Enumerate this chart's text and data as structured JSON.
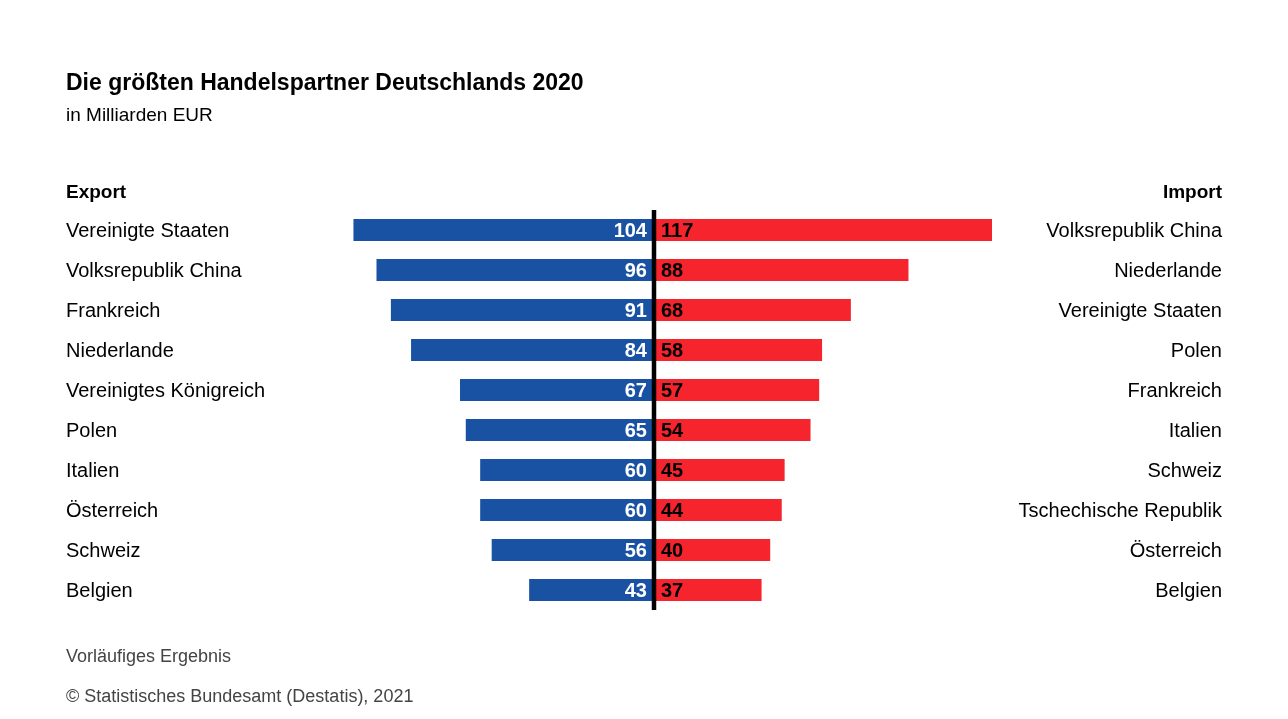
{
  "chart_data": [
    {
      "type": "bar",
      "orientation": "horizontal",
      "title": "Die größten Handelspartner Deutschlands 2020",
      "subtitle": "in Milliarden EUR",
      "ylabel": "Export",
      "categories": [
        "Vereinigte Staaten",
        "Volksrepublik China",
        "Frankreich",
        "Niederlande",
        "Vereinigtes Königreich",
        "Polen",
        "Italien",
        "Österreich",
        "Schweiz",
        "Belgien"
      ],
      "values": [
        104,
        96,
        91,
        84,
        67,
        65,
        60,
        60,
        56,
        43
      ],
      "color": "#1a52a3",
      "data_labels": true,
      "tick_labels": "y",
      "annotations": [
        "Vorläufiges Ergebnis",
        "© Statistisches Bundesamt (Destatis), 2021"
      ]
    },
    {
      "type": "bar",
      "orientation": "horizontal",
      "ylabel": "Import",
      "categories": [
        "Volksrepublik China",
        "Niederlande",
        "Vereinigte Staaten",
        "Polen",
        "Frankreich",
        "Italien",
        "Schweiz",
        "Tschechische Republik",
        "Österreich",
        "Belgien"
      ],
      "values": [
        117,
        88,
        68,
        58,
        57,
        54,
        45,
        44,
        40,
        37
      ],
      "color": "#f5242d",
      "data_labels": true,
      "tick_labels": "y"
    }
  ]
}
